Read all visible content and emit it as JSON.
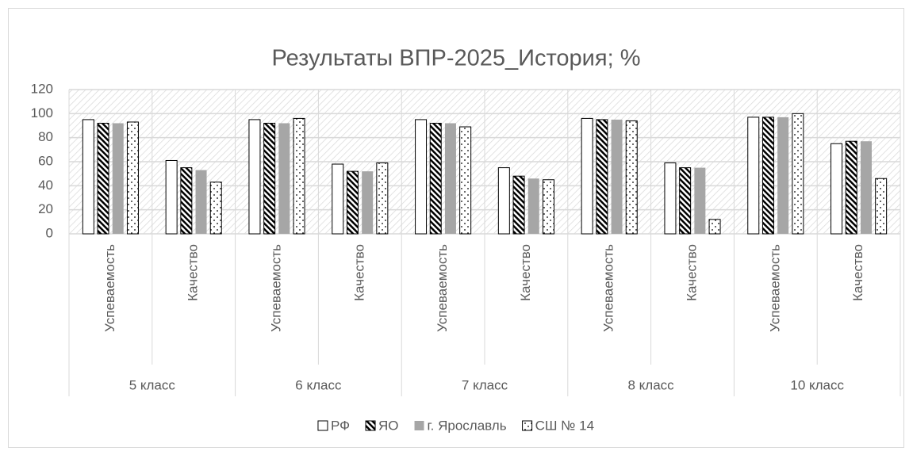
{
  "chart_data": {
    "type": "bar",
    "title": "Результаты ВПР-2025_История; %",
    "categories": [
      "Успеваемость",
      "Качество",
      "Успеваемость",
      "Качество",
      "Успеваемость",
      "Качество",
      "Успеваемость",
      "Качество",
      "Успеваемость",
      "Качество"
    ],
    "category_groups": [
      "5 класс",
      "6 класс",
      "7 класс",
      "8 класс",
      "10 класс"
    ],
    "series": [
      {
        "name": "РФ",
        "color": "#ffffff",
        "pattern": "solid",
        "values": [
          95,
          61,
          95,
          58,
          95,
          55,
          96,
          59,
          97,
          75
        ]
      },
      {
        "name": "ЯО",
        "color": "#000000",
        "pattern": "diagonal",
        "values": [
          92,
          55,
          92,
          52,
          92,
          48,
          95,
          55,
          97,
          77
        ]
      },
      {
        "name": "г. Ярославль",
        "color": "#a6a6a6",
        "pattern": "solid",
        "values": [
          92,
          53,
          92,
          52,
          92,
          46,
          95,
          55,
          97,
          77
        ]
      },
      {
        "name": "СШ № 14",
        "color": "#ffffff",
        "pattern": "dotted",
        "values": [
          93,
          43,
          96,
          59,
          89,
          45,
          94,
          12,
          100,
          46
        ]
      }
    ],
    "ylim": [
      0,
      120
    ],
    "yticks": [
      0,
      20,
      40,
      60,
      80,
      100,
      120
    ],
    "grid": true,
    "legend": "bottom"
  }
}
